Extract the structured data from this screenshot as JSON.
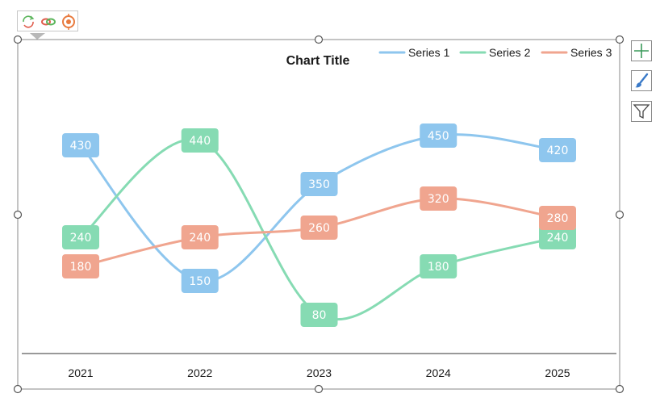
{
  "chart_data": {
    "type": "line",
    "title": "Chart Title",
    "categories": [
      "2021",
      "2022",
      "2023",
      "2024",
      "2025"
    ],
    "series": [
      {
        "name": "Series 1",
        "color": "#8ec6ee",
        "values": [
          430,
          150,
          350,
          450,
          420
        ]
      },
      {
        "name": "Series 2",
        "color": "#86dbb3",
        "values": [
          240,
          440,
          80,
          180,
          240
        ]
      },
      {
        "name": "Series 3",
        "color": "#f0a58f",
        "values": [
          180,
          240,
          260,
          320,
          280
        ]
      }
    ],
    "ylim": [
      0,
      500
    ],
    "smooth": true,
    "data_labels": true,
    "gridlines": false,
    "legend_position": "top-right"
  },
  "toolbar": {
    "icons": [
      "refresh-icon",
      "link-icon",
      "target-icon"
    ]
  },
  "side_buttons": [
    "chart-elements-plus-icon",
    "chart-styles-brush-icon",
    "chart-filters-funnel-icon"
  ]
}
